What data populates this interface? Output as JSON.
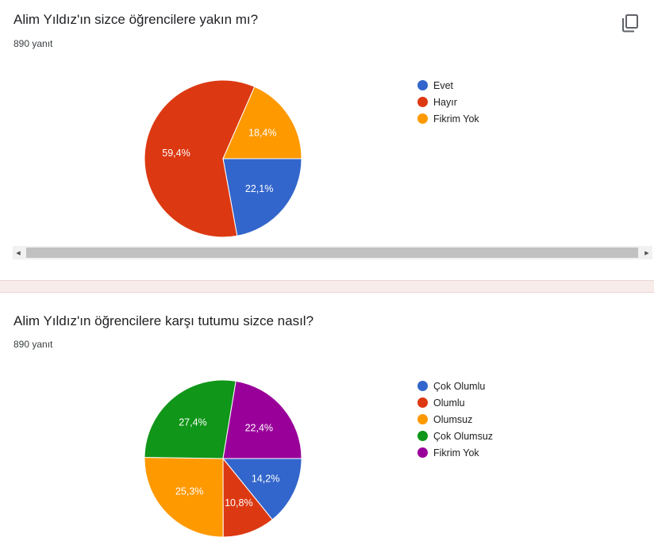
{
  "chart_data": [
    {
      "type": "pie",
      "title": "Alim Yıldız'ın sizce öğrencilere yakın mı?",
      "subtitle": "890 yanıt",
      "slices": [
        {
          "label": "Evet",
          "value": 22.1,
          "display": "22,1%",
          "color": "#3366cc"
        },
        {
          "label": "Hayır",
          "value": 59.4,
          "display": "59,4%",
          "color": "#dc3912"
        },
        {
          "label": "Fikrim Yok",
          "value": 18.4,
          "display": "18,4%",
          "color": "#ff9900"
        }
      ],
      "slice_order": [
        0,
        1,
        2
      ],
      "legend_placement": "right"
    },
    {
      "type": "pie",
      "title": "Alim Yıldız'ın öğrencilere karşı tutumu sizce nasıl?",
      "subtitle": "890 yanıt",
      "slices": [
        {
          "label": "Çok Olumlu",
          "value": 14.2,
          "display": "14,2%",
          "color": "#3366cc"
        },
        {
          "label": "Olumlu",
          "value": 10.8,
          "display": "10,8%",
          "color": "#dc3912"
        },
        {
          "label": "Olumsuz",
          "value": 25.3,
          "display": "25,3%",
          "color": "#ff9900"
        },
        {
          "label": "Çok Olumsuz",
          "value": 27.4,
          "display": "27,4%",
          "color": "#109618"
        },
        {
          "label": "Fikrim Yok",
          "value": 22.4,
          "display": "22,4%",
          "color": "#990099"
        }
      ],
      "slice_order": [
        0,
        1,
        2,
        3,
        4
      ],
      "legend_placement": "right"
    }
  ],
  "icons": {
    "copy": "copy-icon",
    "scroll_left": "scroll-left-arrow-icon",
    "scroll_right": "scroll-right-arrow-icon"
  },
  "scrollbar": {
    "left_glyph": "◀",
    "right_glyph": "▶"
  }
}
